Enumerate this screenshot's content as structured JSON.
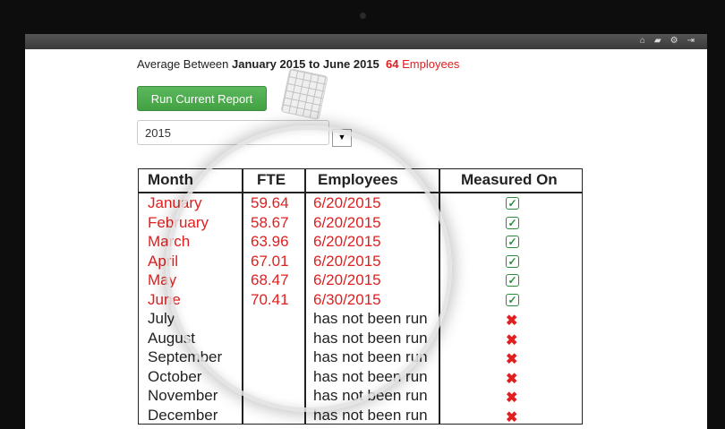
{
  "topbar": {
    "icons": [
      "home-icon",
      "message-icon",
      "gear-icon",
      "logout-icon"
    ]
  },
  "summary": {
    "prefix": "Average Between",
    "range": "January 2015 to June 2015",
    "count": "64",
    "count_label": "Employees"
  },
  "run_button": "Run Current Report",
  "year_select": {
    "value": "2015"
  },
  "table": {
    "headers": {
      "month": "Month",
      "fte": "FTE",
      "employees": "Employees",
      "measured_on": "Measured On"
    },
    "rows": [
      {
        "month": "January",
        "fte": "59.64",
        "date": "6/20/2015",
        "status": "ok"
      },
      {
        "month": "February",
        "fte": "58.67",
        "date": "6/20/2015",
        "status": "ok"
      },
      {
        "month": "March",
        "fte": "63.96",
        "date": "6/20/2015",
        "status": "ok"
      },
      {
        "month": "April",
        "fte": "67.01",
        "date": "6/20/2015",
        "status": "ok"
      },
      {
        "month": "May",
        "fte": "68.47",
        "date": "6/20/2015",
        "status": "ok"
      },
      {
        "month": "June",
        "fte": "70.41",
        "date": "6/30/2015",
        "status": "ok"
      },
      {
        "month": "July",
        "fte": "",
        "date": "has not been run",
        "status": "no"
      },
      {
        "month": "August",
        "fte": "",
        "date": "has not been run",
        "status": "no"
      },
      {
        "month": "September",
        "fte": "",
        "date": "has not been run",
        "status": "no"
      },
      {
        "month": "October",
        "fte": "",
        "date": "has not been run",
        "status": "no"
      },
      {
        "month": "November",
        "fte": "",
        "date": "has not been run",
        "status": "no"
      },
      {
        "month": "December",
        "fte": "",
        "date": "has not been run",
        "status": "no"
      }
    ]
  },
  "colors": {
    "accent_red": "#e02020",
    "button_green": "#4cae4c",
    "check_green": "#2e8b3e"
  }
}
